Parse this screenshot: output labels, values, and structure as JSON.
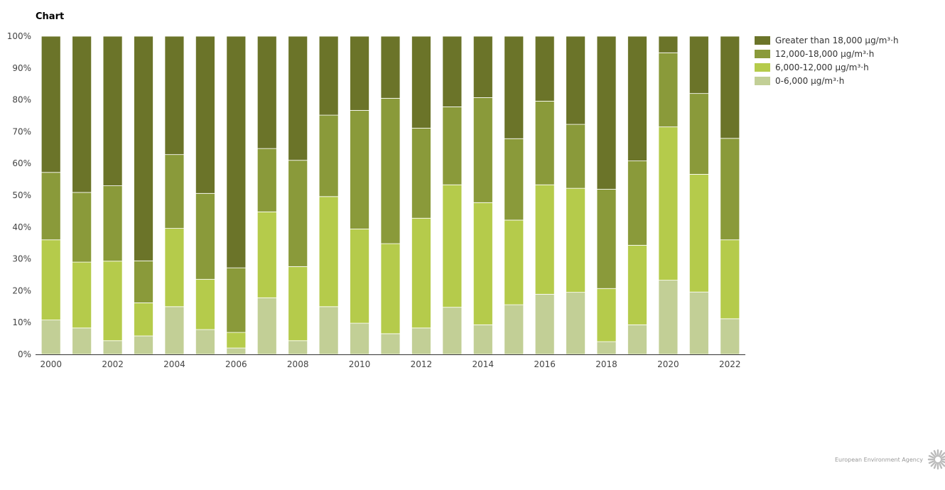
{
  "chart_title": "Chart",
  "credit": {
    "text": "European Environment Agency",
    "logo_icon": "eea-sun-icon",
    "logo_color": "#bbbbbb"
  },
  "chart_data": {
    "type": "bar",
    "stacked": true,
    "categories": [
      "2000",
      "2001",
      "2002",
      "2003",
      "2004",
      "2005",
      "2006",
      "2007",
      "2008",
      "2009",
      "2010",
      "2011",
      "2012",
      "2013",
      "2014",
      "2015",
      "2016",
      "2017",
      "2018",
      "2019",
      "2020",
      "2021",
      "2022"
    ],
    "x_tick_labels": [
      "2000",
      "2002",
      "2004",
      "2006",
      "2008",
      "2010",
      "2012",
      "2014",
      "2016",
      "2018",
      "2020",
      "2022"
    ],
    "y_tick_labels": [
      "0%",
      "10%",
      "20%",
      "30%",
      "40%",
      "50%",
      "60%",
      "70%",
      "80%",
      "90%",
      "100%"
    ],
    "ylim": [
      0,
      100
    ],
    "legend_position": "top-right",
    "series": [
      {
        "name": "0-6,000 µg/m³·h",
        "color": "#c2cf96",
        "values": [
          10.8,
          8.3,
          4.3,
          5.8,
          15.0,
          7.8,
          2.0,
          17.8,
          4.3,
          15.0,
          9.8,
          6.5,
          8.3,
          14.8,
          9.3,
          15.6,
          18.9,
          19.5,
          4.0,
          9.3,
          23.3,
          19.6,
          11.2
        ]
      },
      {
        "name": "6,000-12,000 µg/m³·h",
        "color": "#b5cb4b",
        "values": [
          25.2,
          20.7,
          25.0,
          10.4,
          24.6,
          15.8,
          4.9,
          27.0,
          23.3,
          34.6,
          29.6,
          28.3,
          34.5,
          38.5,
          38.4,
          26.6,
          34.4,
          32.7,
          16.7,
          25.0,
          48.2,
          37.0,
          24.8
        ]
      },
      {
        "name": "12,000-18,000 µg/m³·h",
        "color": "#8a9a3a",
        "values": [
          21.2,
          21.9,
          23.7,
          13.2,
          23.2,
          27.0,
          20.3,
          19.9,
          33.4,
          25.6,
          37.3,
          45.7,
          28.3,
          24.5,
          33.0,
          25.6,
          26.3,
          20.1,
          31.2,
          26.5,
          23.3,
          25.4,
          31.9
        ]
      },
      {
        "name": "Greater than 18,000 µg/m³·h",
        "color": "#6b7429",
        "values": [
          42.8,
          49.1,
          47.0,
          70.6,
          37.2,
          49.4,
          72.8,
          35.3,
          39.0,
          24.8,
          23.3,
          19.5,
          28.9,
          22.2,
          19.3,
          32.2,
          20.4,
          27.7,
          48.1,
          39.2,
          5.2,
          18.0,
          32.1
        ]
      }
    ]
  }
}
